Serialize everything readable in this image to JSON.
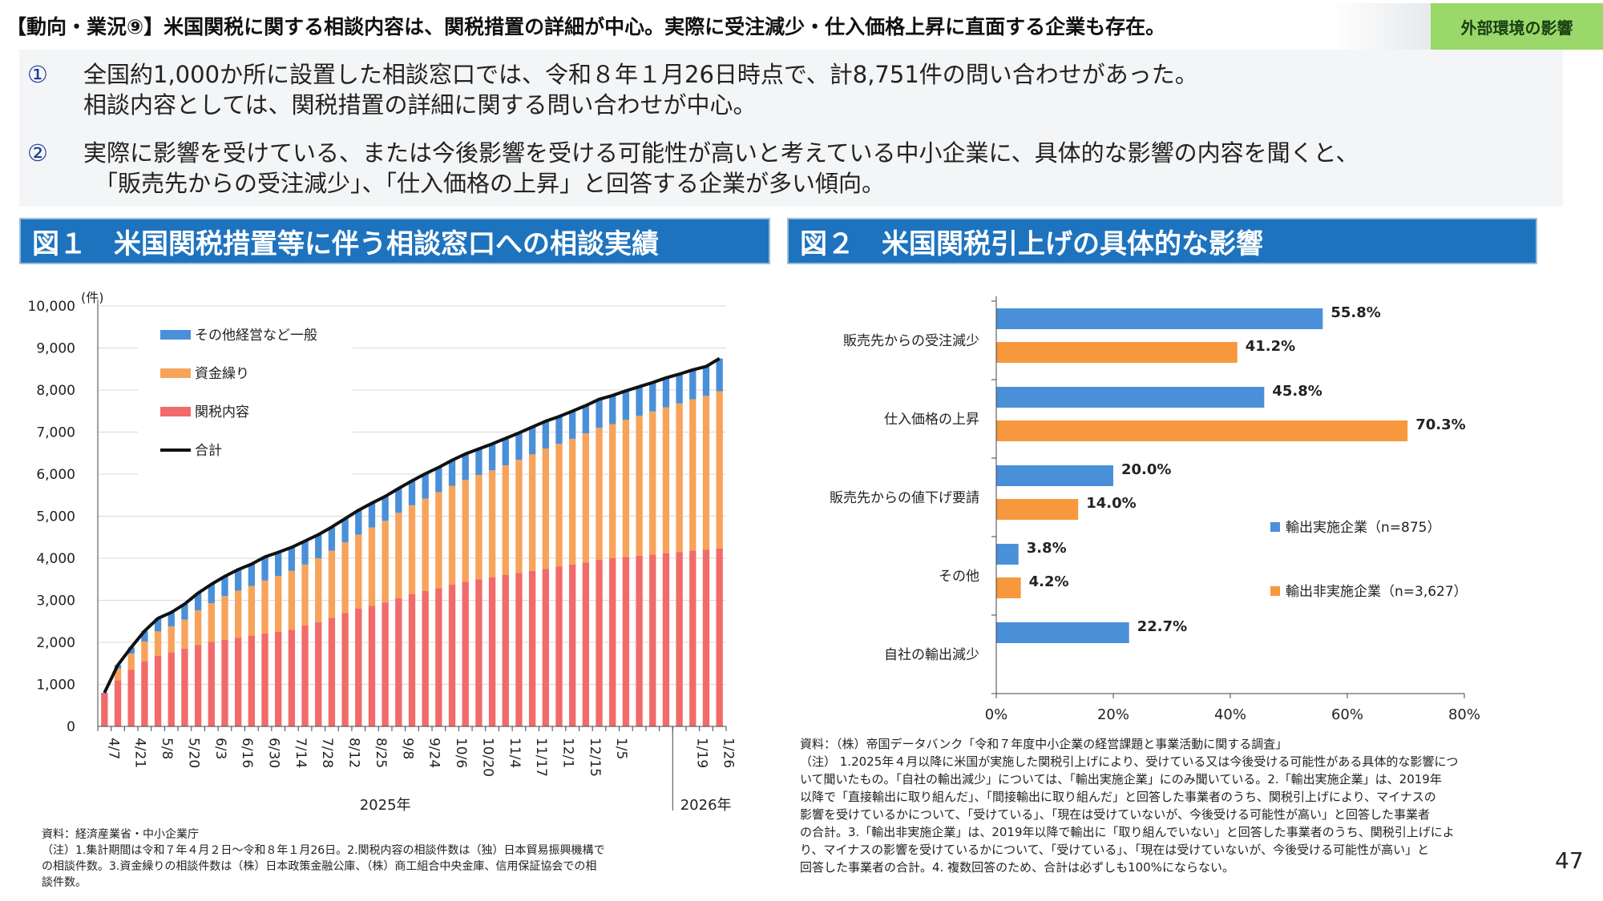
{
  "header": {
    "title": "【動向・業況⑨】米国関税に関する相談内容は、関税措置の詳細が中心。実際に受注減少・仕入価格上昇に直面する企業も存在。",
    "badge": "外部環境の影響"
  },
  "summary": {
    "items": [
      {
        "num": "①",
        "lines": [
          "全国約1,000か所に設置した相談窓口では、令和８年１月26日時点で、計8,751件の問い合わせがあった。",
          "相談内容としては、関税措置の詳細に関する問い合わせが中心。"
        ]
      },
      {
        "num": "②",
        "lines": [
          "実際に影響を受けている、または今後影響を受ける可能性が高いと考えている中小企業に、具体的な影響の内容を聞くと、",
          "「販売先からの受注減少」、「仕入価格の上昇」と回答する企業が多い傾向。"
        ]
      }
    ]
  },
  "fig1": {
    "heading": "図１　米国関税措置等に伴う相談窓口への相談実績",
    "note_lines": [
      "資料：経済産業省・中小企業庁",
      "（注）1.集計期間は令和７年４月２日～令和８年１月26日。2.関税内容の相談件数は（独）日本貿易振興機構で",
      "の相談件数。3.資金繰りの相談件数は（株）日本政策金融公庫、（株）商工組合中央金庫、信用保証協会での相",
      "談件数。"
    ]
  },
  "fig2": {
    "heading": "図２　米国関税引上げの具体的な影響",
    "note_lines": [
      "資料：（株）帝国データバンク「令和７年度中小企業の経営課題と事業活動に関する調査」",
      "（注） 1.2025年４月以降に米国が実施した関税引上げにより、受けている又は今後受ける可能性がある具体的な影響につ",
      "いて聞いたもの。「自社の輸出減少」については、「輸出実施企業」にのみ聞いている。2.「輸出実施企業」は、2019年",
      "以降で「直接輸出に取り組んだ」、「間接輸出に取り組んだ」と回答した事業者のうち、関税引上げにより、マイナスの",
      "影響を受けているかについて、「受けている」、「現在は受けていないが、今後受ける可能性が高い」と回答した事業者",
      "の合計。3.「輸出非実施企業」は、2019年以降で輸出に「取り組んでいない」と回答した事業者のうち、関税引上げによ",
      "り、マイナスの影響を受けているかについて、「受けている」、「現在は受けていないが、今後受ける可能性が高い」と",
      "回答した事業者の合計。4. 複数回答のため、合計は必ずしも100%にならない。"
    ]
  },
  "page_number": "47",
  "chart_data": [
    {
      "type": "bar",
      "stacked": true,
      "ylabel": "(件)",
      "ylim": [
        0,
        10000
      ],
      "y_ticks": [
        "0",
        "1,000",
        "2,000",
        "3,000",
        "4,000",
        "5,000",
        "6,000",
        "7,000",
        "8,000",
        "9,000",
        "10,000"
      ],
      "x_tick_labels": [
        "4/7",
        "4/21",
        "5/8",
        "5/20",
        "6/3",
        "6/16",
        "6/30",
        "7/14",
        "7/28",
        "8/12",
        "8/25",
        "9/8",
        "9/24",
        "10/6",
        "10/20",
        "11/4",
        "11/17",
        "12/1",
        "12/15",
        "1/5",
        "1/19",
        "1/26"
      ],
      "year_labels": [
        "2025年",
        "2026年"
      ],
      "legend_position": "top-left",
      "series": [
        {
          "name": "関税内容",
          "color": "#f26a6a",
          "values": [
            780,
            1100,
            1350,
            1550,
            1680,
            1760,
            1850,
            1940,
            2010,
            2060,
            2110,
            2160,
            2210,
            2250,
            2300,
            2400,
            2480,
            2580,
            2700,
            2800,
            2870,
            2950,
            3050,
            3150,
            3220,
            3290,
            3370,
            3440,
            3500,
            3550,
            3600,
            3650,
            3700,
            3750,
            3800,
            3850,
            3900,
            3960,
            4000,
            4030,
            4060,
            4090,
            4120,
            4150,
            4180,
            4200,
            4230
          ]
        },
        {
          "name": "資金繰り",
          "color": "#f7a35a",
          "values": [
            0,
            280,
            380,
            470,
            580,
            620,
            690,
            820,
            920,
            1040,
            1120,
            1180,
            1260,
            1330,
            1400,
            1450,
            1520,
            1600,
            1680,
            1760,
            1860,
            1940,
            2030,
            2110,
            2200,
            2280,
            2350,
            2420,
            2480,
            2540,
            2610,
            2690,
            2770,
            2860,
            2920,
            2990,
            3070,
            3140,
            3190,
            3260,
            3330,
            3400,
            3470,
            3530,
            3600,
            3660,
            3740
          ]
        },
        {
          "name": "その他経営など一般",
          "color": "#4a90d9",
          "values": [
            20,
            80,
            150,
            250,
            310,
            330,
            370,
            410,
            450,
            470,
            500,
            520,
            560,
            560,
            560,
            560,
            560,
            560,
            560,
            580,
            580,
            580,
            580,
            580,
            590,
            590,
            610,
            620,
            620,
            630,
            640,
            640,
            650,
            650,
            650,
            660,
            660,
            680,
            680,
            690,
            690,
            690,
            700,
            700,
            700,
            700,
            780
          ]
        }
      ],
      "line_series": {
        "name": "合計",
        "color": "#111111",
        "values": [
          800,
          1460,
          1880,
          2270,
          2570,
          2710,
          2910,
          3170,
          3380,
          3570,
          3730,
          3860,
          4030,
          4140,
          4260,
          4410,
          4560,
          4740,
          4940,
          5140,
          5310,
          5470,
          5660,
          5840,
          6010,
          6160,
          6330,
          6480,
          6600,
          6720,
          6850,
          6980,
          7120,
          7260,
          7370,
          7500,
          7630,
          7780,
          7870,
          7980,
          8080,
          8180,
          8290,
          8380,
          8480,
          8560,
          8751
        ]
      }
    },
    {
      "type": "bar",
      "orientation": "horizontal",
      "categories": [
        "販売先からの受注減少",
        "仕入価格の上昇",
        "販売先からの値下げ要請",
        "その他",
        "自社の輸出減少"
      ],
      "xlim": [
        0,
        80
      ],
      "x_ticks": [
        "0%",
        "20%",
        "40%",
        "60%",
        "80%"
      ],
      "legend_position": "right",
      "series": [
        {
          "name": "輸出実施企業（n=875）",
          "color": "#4a90d9",
          "values": [
            55.8,
            45.8,
            20.0,
            3.8,
            22.7
          ],
          "labels": [
            "55.8%",
            "45.8%",
            "20.0%",
            "3.8%",
            "22.7%"
          ]
        },
        {
          "name": "輸出非実施企業（n=3,627）",
          "color": "#f7983e",
          "values": [
            41.2,
            70.3,
            14.0,
            4.2,
            null
          ],
          "labels": [
            "41.2%",
            "70.3%",
            "14.0%",
            "4.2%",
            ""
          ]
        }
      ]
    }
  ]
}
